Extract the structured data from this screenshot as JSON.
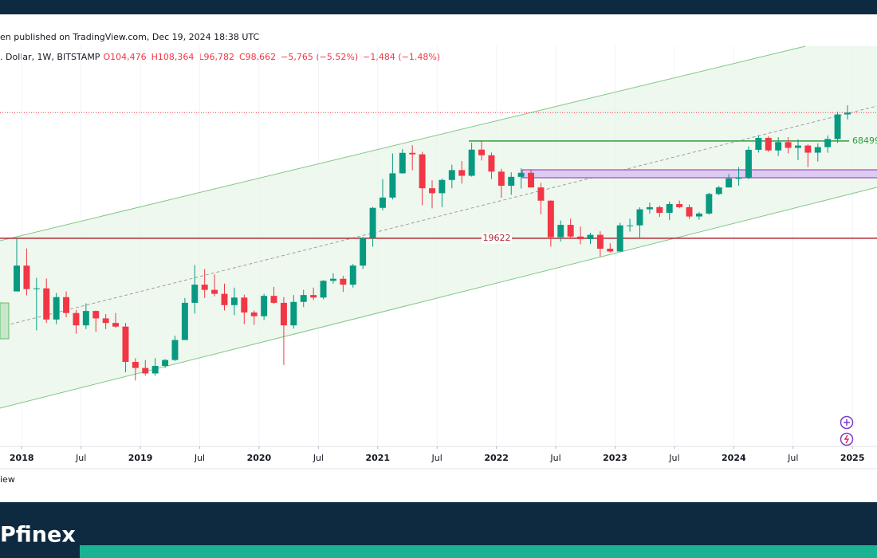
{
  "header": {
    "published": "en published on TradingView.com, Dec 19, 2024 18:38 UTC",
    "symbol": ". Dollar, 1W, BITSTAMP",
    "ohlc": [
      "O104,476",
      "H108,364",
      "L96,782",
      "C98,662"
    ],
    "change": "−5,765 (−5.52%)",
    "change2": "−1,484 (−1.48%)"
  },
  "watermark": "iew",
  "footer": {
    "brand": "Pfinex"
  },
  "chart_data": {
    "type": "candlestick",
    "x": [
      "2017-12",
      "2018-01",
      "2018-02",
      "2018-03",
      "2018-04",
      "2018-05",
      "2018-06",
      "2018-07",
      "2018-08",
      "2018-09",
      "2018-10",
      "2018-11",
      "2018-12",
      "2019-01",
      "2019-02",
      "2019-03",
      "2019-04",
      "2019-05",
      "2019-06",
      "2019-07",
      "2019-08",
      "2019-09",
      "2019-10",
      "2019-11",
      "2019-12",
      "2020-01",
      "2020-02",
      "2020-03",
      "2020-04",
      "2020-05",
      "2020-06",
      "2020-07",
      "2020-08",
      "2020-09",
      "2020-10",
      "2020-11",
      "2020-12",
      "2021-01",
      "2021-02",
      "2021-03",
      "2021-04",
      "2021-05",
      "2021-06",
      "2021-07",
      "2021-08",
      "2021-09",
      "2021-10",
      "2021-11",
      "2021-12",
      "2022-01",
      "2022-02",
      "2022-03",
      "2022-04",
      "2022-05",
      "2022-06",
      "2022-07",
      "2022-08",
      "2022-09",
      "2022-10",
      "2022-11",
      "2022-12",
      "2023-01",
      "2023-02",
      "2023-03",
      "2023-04",
      "2023-05",
      "2023-06",
      "2023-07",
      "2023-08",
      "2023-09",
      "2023-10",
      "2023-11",
      "2023-12",
      "2024-01",
      "2024-02",
      "2024-03",
      "2024-04",
      "2024-05",
      "2024-06",
      "2024-07",
      "2024-08",
      "2024-09",
      "2024-10",
      "2024-11",
      "2024-12"
    ],
    "open": [
      9900,
      13800,
      10200,
      10300,
      6900,
      9200,
      7500,
      6400,
      7700,
      7000,
      6600,
      6300,
      4000,
      3700,
      3450,
      3800,
      4100,
      5300,
      8550,
      10800,
      10100,
      9600,
      8300,
      9150,
      7550,
      7200,
      9350,
      8550,
      6400,
      8650,
      9450,
      9150,
      11350,
      11650,
      10800,
      13800,
      19700,
      29000,
      33100,
      45200,
      58800,
      57700,
      37300,
      35000,
      41500,
      47100,
      43800,
      61300,
      57000,
      46200,
      38500,
      43200,
      45500,
      37700,
      31800,
      19900,
      23300,
      20050,
      19400,
      20500,
      17150,
      16550,
      23150,
      23150,
      28450,
      29250,
      27200,
      30450,
      29250,
      25950,
      26950,
      34650,
      37700,
      42300,
      42600,
      61150,
      71300,
      60650,
      67500,
      62700,
      64600,
      58950,
      63300,
      70250,
      96400
    ],
    "high": [
      19600,
      17200,
      11800,
      11700,
      9700,
      9900,
      7800,
      8500,
      7750,
      7400,
      7500,
      6600,
      4200,
      4100,
      4200,
      4150,
      5600,
      9100,
      13900,
      13200,
      12300,
      10950,
      10400,
      9500,
      7750,
      9600,
      10500,
      9200,
      9450,
      10100,
      10400,
      11450,
      12500,
      12100,
      14100,
      19900,
      29300,
      41950,
      58350,
      61800,
      64850,
      59600,
      41300,
      42300,
      50500,
      52900,
      67000,
      69000,
      59100,
      47900,
      45800,
      48200,
      47450,
      40000,
      31950,
      24650,
      25200,
      22800,
      21050,
      21450,
      18400,
      23950,
      25250,
      29200,
      31000,
      29850,
      31450,
      31850,
      30250,
      27500,
      35200,
      38450,
      44750,
      48950,
      63900,
      73750,
      72800,
      71950,
      71950,
      70000,
      65600,
      66500,
      73600,
      99800,
      108364
    ],
    "low": [
      10400,
      9400,
      6000,
      6600,
      6500,
      7100,
      5750,
      6100,
      5900,
      6100,
      6200,
      3500,
      3150,
      3350,
      3350,
      3700,
      4050,
      5300,
      7450,
      9100,
      9300,
      7750,
      7300,
      6500,
      6450,
      6850,
      8450,
      3850,
      6150,
      8100,
      8850,
      8950,
      10950,
      9850,
      10400,
      13200,
      17600,
      28100,
      32300,
      45000,
      47000,
      30000,
      28800,
      29300,
      37300,
      39600,
      43300,
      53300,
      42000,
      33000,
      34300,
      37200,
      37600,
      26700,
      17600,
      18800,
      19600,
      18150,
      18200,
      15500,
      16300,
      16500,
      21350,
      19550,
      26950,
      25800,
      24750,
      28850,
      25150,
      24900,
      26550,
      34100,
      37650,
      38550,
      41900,
      59000,
      59600,
      56550,
      58400,
      53500,
      49000,
      52550,
      58900,
      66800,
      90500
    ],
    "close": [
      13800,
      10200,
      10300,
      6900,
      9200,
      7500,
      6400,
      7700,
      7000,
      6600,
      6300,
      4000,
      3700,
      3450,
      3800,
      4100,
      5300,
      8550,
      10800,
      10100,
      9600,
      8300,
      9150,
      7550,
      7200,
      9350,
      8550,
      6400,
      8650,
      9450,
      9150,
      11350,
      11650,
      10800,
      13800,
      19700,
      29000,
      33100,
      45200,
      58800,
      57700,
      37300,
      35000,
      41500,
      47100,
      43800,
      61300,
      57000,
      46200,
      38500,
      43200,
      45500,
      37700,
      31800,
      19900,
      23300,
      20050,
      19400,
      20500,
      17150,
      16550,
      23150,
      23150,
      28450,
      29250,
      27200,
      30450,
      29250,
      25950,
      26950,
      34650,
      37700,
      42300,
      42600,
      61150,
      71300,
      60650,
      67500,
      62700,
      64600,
      58950,
      63300,
      70250,
      96400,
      98662
    ],
    "up_color": "#089981",
    "down_color": "#f23645",
    "ylim": [
      1350,
      234000
    ],
    "log_scale": true,
    "xlim": [
      "2017-10",
      "2025-03"
    ],
    "xticks": [
      {
        "value": "2018-01",
        "label": "2018"
      },
      {
        "value": "2018-07",
        "label": "Jul"
      },
      {
        "value": "2019-01",
        "label": "2019"
      },
      {
        "value": "2019-07",
        "label": "Jul"
      },
      {
        "value": "2020-01",
        "label": "2020"
      },
      {
        "value": "2020-07",
        "label": "Jul"
      },
      {
        "value": "2021-01",
        "label": "2021"
      },
      {
        "value": "2021-07",
        "label": "Jul"
      },
      {
        "value": "2022-01",
        "label": "2022"
      },
      {
        "value": "2022-07",
        "label": "Jul"
      },
      {
        "value": "2023-01",
        "label": "2023"
      },
      {
        "value": "2023-07",
        "label": "Jul"
      },
      {
        "value": "2024-01",
        "label": "2024"
      },
      {
        "value": "2024-07",
        "label": "Jul"
      },
      {
        "value": "2025-01",
        "label": "2025"
      }
    ],
    "grid": "x",
    "levels": [
      {
        "value": 19622,
        "color": "#b22833"
      },
      {
        "value": 68499,
        "color": "#2e9b3a"
      }
    ]
  }
}
